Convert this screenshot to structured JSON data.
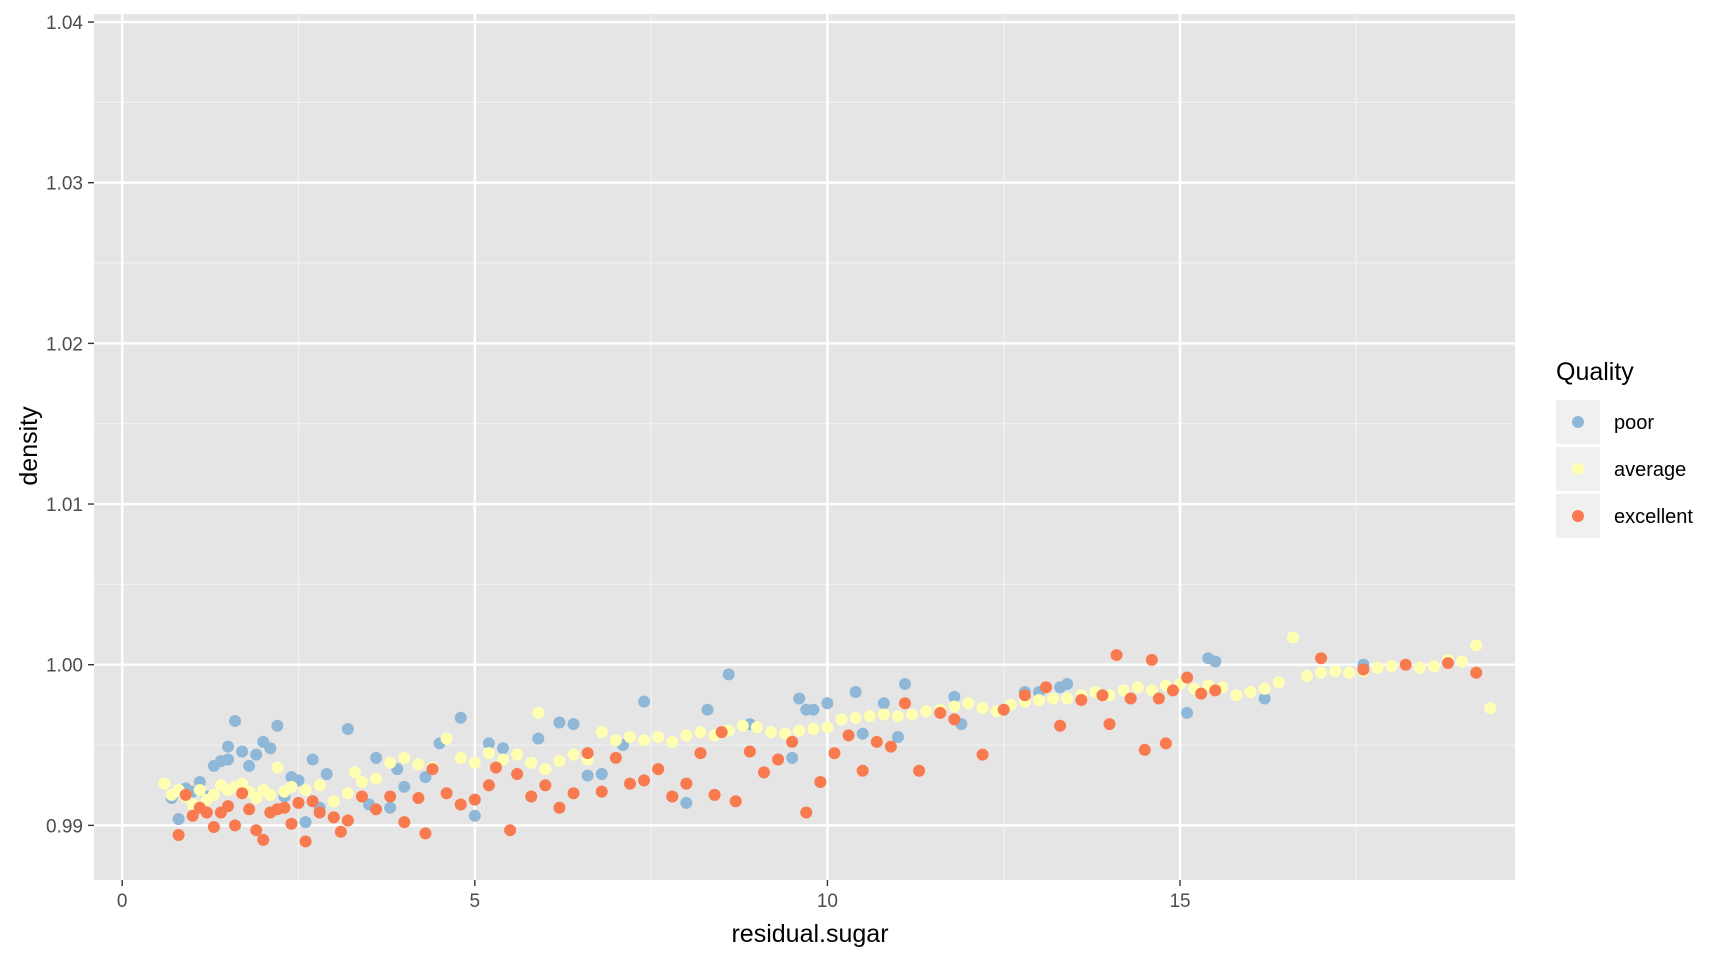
{
  "chart_data": {
    "type": "scatter",
    "title": "",
    "xlabel": "residual.sugar",
    "ylabel": "density",
    "xlim": [
      -0.4,
      19.75
    ],
    "ylim": [
      0.9866,
      1.0405
    ],
    "x_ticks": [
      0,
      5,
      10,
      15
    ],
    "x_tick_labels": [
      "0",
      "5",
      "10",
      "15"
    ],
    "y_ticks": [
      0.99,
      1.0,
      1.01,
      1.02,
      1.03,
      1.04
    ],
    "y_tick_labels": [
      "0.99",
      "1.00",
      "1.01",
      "1.02",
      "1.03",
      "1.04"
    ],
    "grid": true,
    "legend": {
      "title": "Quality",
      "position": "right",
      "entries": [
        {
          "label": "poor",
          "color": "#8fb8d8"
        },
        {
          "label": "average",
          "color": "#ffffb2"
        },
        {
          "label": "excellent",
          "color": "#f87a4e"
        }
      ]
    },
    "colors": {
      "panel_background": "#e5e5e5",
      "grid_major": "#ffffff",
      "grid_minor": "#f2f2f2",
      "legend_key_background": "#f0f0f0",
      "tick_label": "#4d4d4d"
    },
    "series": [
      {
        "name": "poor",
        "color": "#8fb8d8",
        "points": [
          [
            0.7,
            0.9917
          ],
          [
            0.8,
            0.9904
          ],
          [
            0.9,
            0.9923
          ],
          [
            1.0,
            0.9921
          ],
          [
            1.1,
            0.9927
          ],
          [
            1.2,
            0.9918
          ],
          [
            1.3,
            0.9937
          ],
          [
            1.4,
            0.994
          ],
          [
            1.5,
            0.9949
          ],
          [
            1.5,
            0.9941
          ],
          [
            1.6,
            0.9965
          ],
          [
            1.7,
            0.9946
          ],
          [
            1.8,
            0.9937
          ],
          [
            1.9,
            0.9944
          ],
          [
            2.0,
            0.9952
          ],
          [
            2.1,
            0.9948
          ],
          [
            2.2,
            0.9962
          ],
          [
            2.3,
            0.9918
          ],
          [
            2.4,
            0.993
          ],
          [
            2.5,
            0.9928
          ],
          [
            2.6,
            0.9902
          ],
          [
            2.7,
            0.9941
          ],
          [
            2.8,
            0.9911
          ],
          [
            2.9,
            0.9932
          ],
          [
            3.2,
            0.996
          ],
          [
            3.5,
            0.9913
          ],
          [
            3.6,
            0.9942
          ],
          [
            3.8,
            0.9911
          ],
          [
            3.9,
            0.9935
          ],
          [
            4.0,
            0.9924
          ],
          [
            4.3,
            0.993
          ],
          [
            4.5,
            0.9951
          ],
          [
            4.8,
            0.9967
          ],
          [
            5.0,
            0.9906
          ],
          [
            5.2,
            0.9951
          ],
          [
            5.4,
            0.9948
          ],
          [
            5.9,
            0.9954
          ],
          [
            6.2,
            0.9964
          ],
          [
            6.4,
            0.9963
          ],
          [
            6.6,
            0.9931
          ],
          [
            6.8,
            0.9932
          ],
          [
            7.1,
            0.995
          ],
          [
            7.4,
            0.9977
          ],
          [
            7.8,
            0.9918
          ],
          [
            8.0,
            0.9914
          ],
          [
            8.3,
            0.9972
          ],
          [
            8.6,
            0.9994
          ],
          [
            8.9,
            0.9963
          ],
          [
            9.5,
            0.9942
          ],
          [
            9.6,
            0.9979
          ],
          [
            9.7,
            0.9972
          ],
          [
            9.8,
            0.9972
          ],
          [
            10.0,
            0.9976
          ],
          [
            10.4,
            0.9983
          ],
          [
            10.5,
            0.9957
          ],
          [
            10.8,
            0.9976
          ],
          [
            11.0,
            0.9955
          ],
          [
            11.1,
            0.9988
          ],
          [
            11.8,
            0.998
          ],
          [
            11.9,
            0.9963
          ],
          [
            12.8,
            0.9983
          ],
          [
            13.0,
            0.9983
          ],
          [
            13.3,
            0.9986
          ],
          [
            13.4,
            0.9988
          ],
          [
            15.1,
            0.997
          ],
          [
            15.4,
            1.0004
          ],
          [
            15.5,
            1.0002
          ],
          [
            16.2,
            0.9979
          ],
          [
            17.6,
            1.0
          ]
        ]
      },
      {
        "name": "average",
        "color": "#ffffb2",
        "points": [
          [
            0.6,
            0.9926
          ],
          [
            0.7,
            0.9919
          ],
          [
            0.8,
            0.9922
          ],
          [
            0.9,
            0.9918
          ],
          [
            1.0,
            0.9913
          ],
          [
            1.1,
            0.9922
          ],
          [
            1.2,
            0.9916
          ],
          [
            1.3,
            0.9919
          ],
          [
            1.4,
            0.9925
          ],
          [
            1.5,
            0.9922
          ],
          [
            1.6,
            0.9924
          ],
          [
            1.7,
            0.9926
          ],
          [
            1.8,
            0.9921
          ],
          [
            1.9,
            0.9917
          ],
          [
            2.0,
            0.9922
          ],
          [
            2.1,
            0.9919
          ],
          [
            2.2,
            0.9936
          ],
          [
            2.3,
            0.9921
          ],
          [
            2.4,
            0.9924
          ],
          [
            2.6,
            0.9922
          ],
          [
            2.8,
            0.9925
          ],
          [
            3.0,
            0.9915
          ],
          [
            3.2,
            0.992
          ],
          [
            3.3,
            0.9933
          ],
          [
            3.4,
            0.9927
          ],
          [
            3.6,
            0.9929
          ],
          [
            3.8,
            0.9939
          ],
          [
            4.0,
            0.9942
          ],
          [
            4.2,
            0.9938
          ],
          [
            4.4,
            0.9936
          ],
          [
            4.6,
            0.9954
          ],
          [
            4.8,
            0.9942
          ],
          [
            5.0,
            0.9939
          ],
          [
            5.2,
            0.9945
          ],
          [
            5.4,
            0.9941
          ],
          [
            5.6,
            0.9944
          ],
          [
            5.8,
            0.9939
          ],
          [
            5.9,
            0.997
          ],
          [
            6.0,
            0.9935
          ],
          [
            6.2,
            0.994
          ],
          [
            6.4,
            0.9944
          ],
          [
            6.6,
            0.9941
          ],
          [
            6.8,
            0.9958
          ],
          [
            7.0,
            0.9953
          ],
          [
            7.2,
            0.9955
          ],
          [
            7.4,
            0.9953
          ],
          [
            7.6,
            0.9955
          ],
          [
            7.8,
            0.9952
          ],
          [
            8.0,
            0.9956
          ],
          [
            8.2,
            0.9958
          ],
          [
            8.4,
            0.9956
          ],
          [
            8.6,
            0.9959
          ],
          [
            8.8,
            0.9962
          ],
          [
            9.0,
            0.9961
          ],
          [
            9.2,
            0.9958
          ],
          [
            9.4,
            0.9957
          ],
          [
            9.6,
            0.9959
          ],
          [
            9.8,
            0.996
          ],
          [
            10.0,
            0.9961
          ],
          [
            10.2,
            0.9966
          ],
          [
            10.4,
            0.9967
          ],
          [
            10.6,
            0.9968
          ],
          [
            10.8,
            0.9969
          ],
          [
            11.0,
            0.9968
          ],
          [
            11.2,
            0.9969
          ],
          [
            11.4,
            0.9971
          ],
          [
            11.6,
            0.9972
          ],
          [
            11.8,
            0.9974
          ],
          [
            12.0,
            0.9976
          ],
          [
            12.2,
            0.9973
          ],
          [
            12.4,
            0.9971
          ],
          [
            12.6,
            0.9975
          ],
          [
            12.8,
            0.9977
          ],
          [
            13.0,
            0.9978
          ],
          [
            13.2,
            0.9979
          ],
          [
            13.4,
            0.9979
          ],
          [
            13.6,
            0.9981
          ],
          [
            13.8,
            0.9983
          ],
          [
            14.0,
            0.9981
          ],
          [
            14.2,
            0.9984
          ],
          [
            14.4,
            0.9986
          ],
          [
            14.6,
            0.9984
          ],
          [
            14.8,
            0.9987
          ],
          [
            15.0,
            0.9988
          ],
          [
            15.2,
            0.9985
          ],
          [
            15.4,
            0.9987
          ],
          [
            15.6,
            0.9986
          ],
          [
            15.8,
            0.9981
          ],
          [
            16.0,
            0.9983
          ],
          [
            16.2,
            0.9985
          ],
          [
            16.4,
            0.9989
          ],
          [
            16.6,
            1.0017
          ],
          [
            16.8,
            0.9993
          ],
          [
            17.0,
            0.9995
          ],
          [
            17.2,
            0.9996
          ],
          [
            17.4,
            0.9995
          ],
          [
            17.6,
            0.9996
          ],
          [
            17.8,
            0.9998
          ],
          [
            18.0,
            0.9999
          ],
          [
            18.2,
            1.0
          ],
          [
            18.4,
            0.9998
          ],
          [
            18.6,
            0.9999
          ],
          [
            18.8,
            1.0003
          ],
          [
            19.0,
            1.0002
          ],
          [
            19.2,
            1.0012
          ],
          [
            19.4,
            0.9973
          ]
        ]
      },
      {
        "name": "excellent",
        "color": "#f87a4e",
        "points": [
          [
            0.8,
            0.9894
          ],
          [
            0.9,
            0.9919
          ],
          [
            1.0,
            0.9906
          ],
          [
            1.1,
            0.9911
          ],
          [
            1.2,
            0.9908
          ],
          [
            1.3,
            0.9899
          ],
          [
            1.4,
            0.9908
          ],
          [
            1.5,
            0.9912
          ],
          [
            1.6,
            0.99
          ],
          [
            1.7,
            0.992
          ],
          [
            1.8,
            0.991
          ],
          [
            1.9,
            0.9897
          ],
          [
            2.0,
            0.9891
          ],
          [
            2.1,
            0.9908
          ],
          [
            2.2,
            0.991
          ],
          [
            2.3,
            0.9911
          ],
          [
            2.4,
            0.9901
          ],
          [
            2.5,
            0.9914
          ],
          [
            2.6,
            0.989
          ],
          [
            2.7,
            0.9915
          ],
          [
            2.8,
            0.9908
          ],
          [
            3.0,
            0.9905
          ],
          [
            3.1,
            0.9896
          ],
          [
            3.2,
            0.9903
          ],
          [
            3.4,
            0.9918
          ],
          [
            3.6,
            0.991
          ],
          [
            3.8,
            0.9918
          ],
          [
            4.0,
            0.9902
          ],
          [
            4.2,
            0.9917
          ],
          [
            4.3,
            0.9895
          ],
          [
            4.4,
            0.9935
          ],
          [
            4.6,
            0.992
          ],
          [
            4.8,
            0.9913
          ],
          [
            5.0,
            0.9916
          ],
          [
            5.2,
            0.9925
          ],
          [
            5.3,
            0.9936
          ],
          [
            5.5,
            0.9897
          ],
          [
            5.6,
            0.9932
          ],
          [
            5.8,
            0.9918
          ],
          [
            6.0,
            0.9925
          ],
          [
            6.2,
            0.9911
          ],
          [
            6.4,
            0.992
          ],
          [
            6.6,
            0.9945
          ],
          [
            6.8,
            0.9921
          ],
          [
            7.0,
            0.9942
          ],
          [
            7.2,
            0.9926
          ],
          [
            7.4,
            0.9928
          ],
          [
            7.6,
            0.9935
          ],
          [
            7.8,
            0.9918
          ],
          [
            8.0,
            0.9926
          ],
          [
            8.2,
            0.9945
          ],
          [
            8.4,
            0.9919
          ],
          [
            8.5,
            0.9958
          ],
          [
            8.7,
            0.9915
          ],
          [
            8.9,
            0.9946
          ],
          [
            9.1,
            0.9933
          ],
          [
            9.3,
            0.9941
          ],
          [
            9.5,
            0.9952
          ],
          [
            9.7,
            0.9908
          ],
          [
            9.9,
            0.9927
          ],
          [
            10.1,
            0.9945
          ],
          [
            10.3,
            0.9956
          ],
          [
            10.5,
            0.9934
          ],
          [
            10.7,
            0.9952
          ],
          [
            10.9,
            0.9949
          ],
          [
            11.1,
            0.9976
          ],
          [
            11.3,
            0.9934
          ],
          [
            11.6,
            0.997
          ],
          [
            11.8,
            0.9966
          ],
          [
            12.2,
            0.9944
          ],
          [
            12.5,
            0.9972
          ],
          [
            12.8,
            0.9981
          ],
          [
            13.1,
            0.9986
          ],
          [
            13.3,
            0.9962
          ],
          [
            13.6,
            0.9978
          ],
          [
            13.9,
            0.9981
          ],
          [
            14.0,
            0.9963
          ],
          [
            14.1,
            1.0006
          ],
          [
            14.3,
            0.9979
          ],
          [
            14.5,
            0.9947
          ],
          [
            14.6,
            1.0003
          ],
          [
            14.7,
            0.9979
          ],
          [
            14.8,
            0.9951
          ],
          [
            14.9,
            0.9984
          ],
          [
            15.1,
            0.9992
          ],
          [
            15.3,
            0.9982
          ],
          [
            15.5,
            0.9984
          ],
          [
            17.0,
            1.0004
          ],
          [
            17.6,
            0.9997
          ],
          [
            18.2,
            1.0
          ],
          [
            18.8,
            1.0001
          ],
          [
            19.2,
            0.9995
          ]
        ]
      }
    ]
  }
}
